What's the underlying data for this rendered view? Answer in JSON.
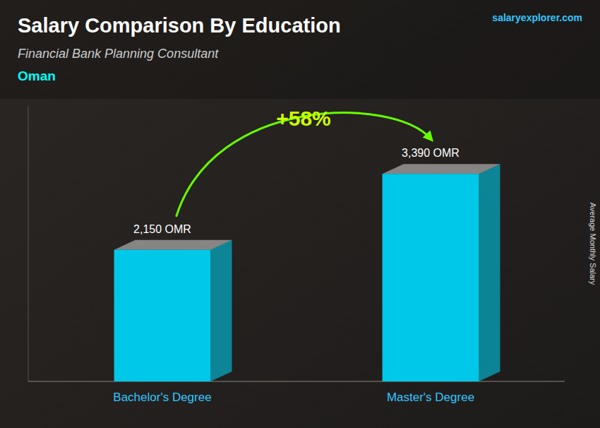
{
  "chart_data": {
    "type": "bar",
    "title": "Salary Comparison By Education",
    "subtitle": "Financial Bank Planning Consultant",
    "ylabel": "Average Monthly Salary",
    "annotations": [
      "Oman",
      "+58%",
      "salaryexplorer.com"
    ],
    "categories": [
      "Bachelor's Degree",
      "Master's Degree"
    ],
    "values": [
      2150,
      3390
    ],
    "value_labels": [
      "2,150 OMR",
      "3,390 OMR"
    ],
    "color": "#00C8E8",
    "ylim": [
      0,
      4500
    ],
    "data_labels": true,
    "tick_labels": false,
    "grid": false
  }
}
